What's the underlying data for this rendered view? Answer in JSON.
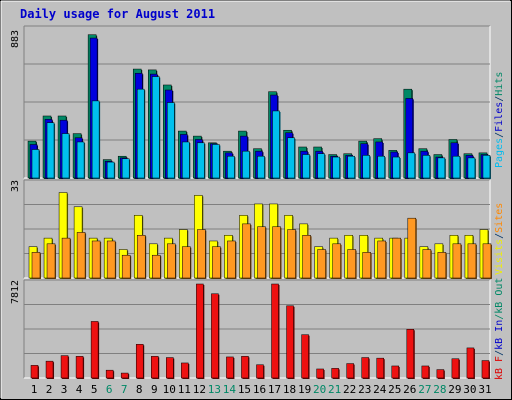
{
  "title": "Daily usage for August 2011",
  "y_axis_legend": {
    "top": [
      {
        "text": "Pages",
        "color": "#00bbee"
      },
      {
        "text": "/",
        "color": "#003366"
      },
      {
        "text": "Files",
        "color": "#0000cc"
      },
      {
        "text": "/",
        "color": "#003366"
      },
      {
        "text": "Hits",
        "color": "#008866"
      }
    ],
    "middle": [
      {
        "text": "Visits",
        "color": "#eeee00"
      },
      {
        "text": "/",
        "color": "#003366"
      },
      {
        "text": "Sites",
        "color": "#ff8800"
      }
    ],
    "bottom": [
      {
        "text": "kB F",
        "color": "#dd0000"
      },
      {
        "text": "/",
        "color": "#003366"
      },
      {
        "text": "kB In",
        "color": "#0000cc"
      },
      {
        "text": "/",
        "color": "#008866"
      },
      {
        "text": "kB Out",
        "color": "#008866"
      }
    ]
  },
  "colors": {
    "background": "#c0c0c0",
    "hits": "#008866",
    "files": "#0000dd",
    "pages": "#00c0ee",
    "visits": "#ffff00",
    "sites": "#ff9922",
    "kbytes": "#ee1111",
    "title": "#0000cc",
    "weekend_label": "#008866",
    "weekday_label": "#000000"
  },
  "chart_data": [
    {
      "type": "bar",
      "panel": "top",
      "ymax_label": "883",
      "ylim": [
        0,
        883
      ],
      "categories": [
        "1",
        "2",
        "3",
        "4",
        "5",
        "6",
        "7",
        "8",
        "9",
        "10",
        "11",
        "12",
        "13",
        "14",
        "15",
        "16",
        "17",
        "18",
        "19",
        "20",
        "21",
        "22",
        "23",
        "24",
        "25",
        "26",
        "27",
        "28",
        "29",
        "30",
        "31"
      ],
      "weekend_days": [
        "6",
        "7",
        "13",
        "14",
        "20",
        "21",
        "27",
        "28"
      ],
      "series": [
        {
          "name": "Hits",
          "values": [
            220,
            370,
            370,
            265,
            855,
            110,
            130,
            650,
            645,
            555,
            280,
            250,
            210,
            160,
            280,
            175,
            515,
            285,
            185,
            185,
            140,
            145,
            220,
            235,
            165,
            530,
            175,
            140,
            230,
            145,
            150
          ]
        },
        {
          "name": "Files",
          "values": [
            200,
            350,
            345,
            240,
            835,
            100,
            120,
            625,
            620,
            525,
            260,
            230,
            205,
            150,
            250,
            160,
            495,
            270,
            160,
            160,
            130,
            135,
            205,
            215,
            155,
            475,
            160,
            125,
            210,
            135,
            140
          ]
        },
        {
          "name": "Pages",
          "values": [
            170,
            330,
            265,
            215,
            460,
            95,
            115,
            530,
            605,
            450,
            215,
            210,
            200,
            130,
            160,
            130,
            400,
            240,
            140,
            145,
            125,
            130,
            135,
            130,
            125,
            150,
            135,
            120,
            130,
            120,
            135
          ]
        }
      ]
    },
    {
      "type": "bar",
      "panel": "middle",
      "ymax_label": "33",
      "ylim": [
        0,
        33
      ],
      "categories": [
        "1",
        "2",
        "3",
        "4",
        "5",
        "6",
        "7",
        "8",
        "9",
        "10",
        "11",
        "12",
        "13",
        "14",
        "15",
        "16",
        "17",
        "18",
        "19",
        "20",
        "21",
        "22",
        "23",
        "24",
        "25",
        "26",
        "27",
        "28",
        "29",
        "30",
        "31"
      ],
      "series": [
        {
          "name": "Visits",
          "values": [
            11,
            14,
            30,
            25,
            14,
            14,
            10,
            22,
            12,
            14,
            17,
            29,
            13,
            15,
            22,
            26,
            26,
            22,
            19,
            11,
            14,
            15,
            15,
            14,
            14,
            14,
            11,
            12,
            15,
            15,
            17
          ]
        },
        {
          "name": "Sites",
          "values": [
            9,
            12,
            14,
            16,
            13,
            13,
            8,
            15,
            8,
            12,
            11,
            17,
            11,
            13,
            19,
            18,
            18,
            17,
            15,
            10,
            12,
            10,
            9,
            13,
            14,
            21,
            10,
            9,
            12,
            12,
            12
          ]
        }
      ]
    },
    {
      "type": "bar",
      "panel": "bottom",
      "ymax_label": "7812",
      "ylim": [
        0,
        7812
      ],
      "categories": [
        "1",
        "2",
        "3",
        "4",
        "5",
        "6",
        "7",
        "8",
        "9",
        "10",
        "11",
        "12",
        "13",
        "14",
        "15",
        "16",
        "17",
        "18",
        "19",
        "20",
        "21",
        "22",
        "23",
        "24",
        "25",
        "26",
        "27",
        "28",
        "29",
        "30",
        "31"
      ],
      "series": [
        {
          "name": "KBytes",
          "values": [
            1050,
            1400,
            1860,
            1800,
            4700,
            650,
            410,
            2800,
            1800,
            1700,
            1250,
            7812,
            7000,
            1750,
            1800,
            1100,
            7812,
            6000,
            3600,
            750,
            800,
            1200,
            1700,
            1650,
            1000,
            4050,
            1000,
            700,
            1600,
            2500,
            1450
          ]
        }
      ]
    }
  ]
}
